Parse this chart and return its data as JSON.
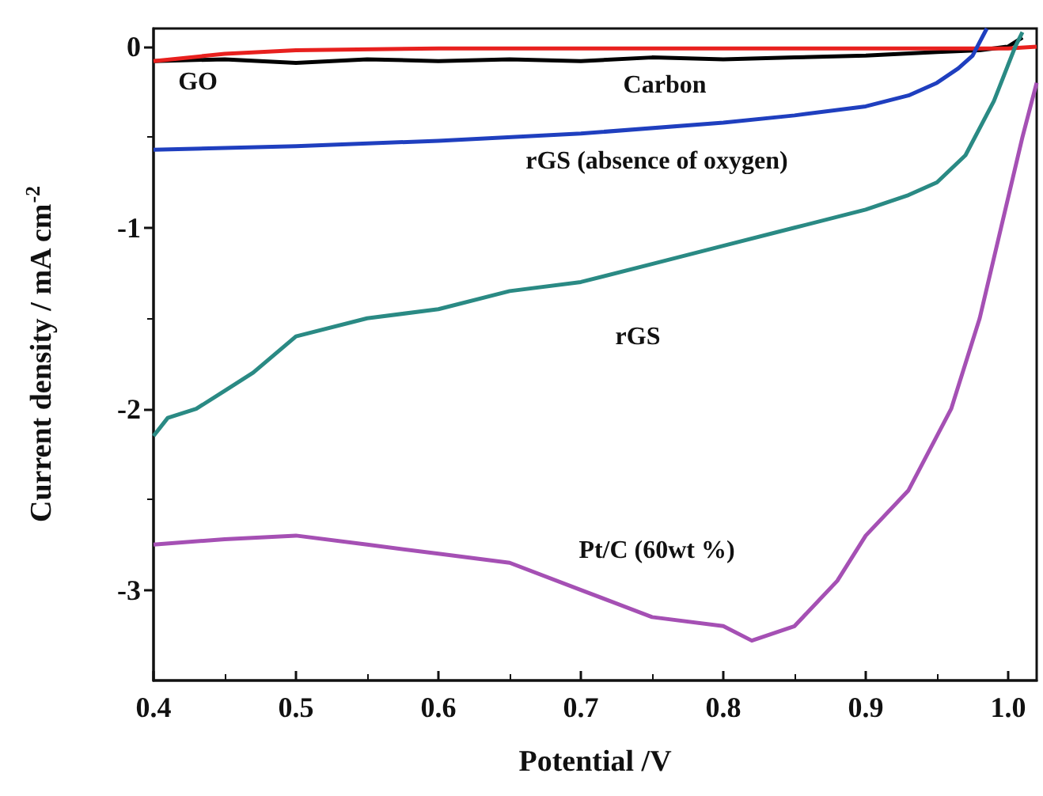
{
  "chart_data": {
    "type": "line",
    "xlabel": "Potential /V",
    "ylabel": "Current density / mA cm$^{-2}$",
    "xlim": [
      0.4,
      1.02
    ],
    "xticks": [
      0.4,
      0.5,
      0.6,
      0.7,
      0.8,
      0.9,
      {
        "value": 1.0,
        "label": "1.0"
      }
    ],
    "ylim": [
      -3.5,
      0.1
    ],
    "yticks": [
      -3,
      -2,
      -1,
      0
    ],
    "grid": false,
    "marker": "none",
    "line_style": "solid",
    "series": [
      {
        "color": "#000000",
        "x": [
          0.4,
          0.45,
          0.5,
          0.55,
          0.6,
          0.65,
          0.7,
          0.75,
          0.8,
          0.85,
          0.9,
          0.95,
          0.98,
          1.0,
          1.01
        ],
        "values": [
          -0.08,
          -0.07,
          -0.09,
          -0.07,
          -0.08,
          -0.07,
          -0.08,
          -0.06,
          -0.07,
          -0.06,
          -0.05,
          -0.03,
          -0.02,
          0,
          0.05
        ]
      },
      {
        "color": "#e8201e",
        "x": [
          0.4,
          0.45,
          0.5,
          0.6,
          0.7,
          0.8,
          0.9,
          1.0,
          1.02
        ],
        "values": [
          -0.08,
          -0.04,
          -0.02,
          -0.01,
          -0.01,
          -0.01,
          -0.01,
          -0.01,
          0
        ]
      },
      {
        "color": "#1f3fbf",
        "x": [
          0.4,
          0.5,
          0.6,
          0.7,
          0.8,
          0.85,
          0.9,
          0.93,
          0.95,
          0.965,
          0.975,
          0.985
        ],
        "values": [
          -0.57,
          -0.55,
          -0.52,
          -0.48,
          -0.42,
          -0.38,
          -0.33,
          -0.27,
          -0.2,
          -0.12,
          -0.05,
          0.1
        ]
      },
      {
        "color": "#2a8a84",
        "x": [
          0.4,
          0.41,
          0.43,
          0.45,
          0.47,
          0.5,
          0.55,
          0.6,
          0.65,
          0.7,
          0.75,
          0.8,
          0.85,
          0.9,
          0.93,
          0.95,
          0.97,
          0.99,
          1.005,
          1.01
        ],
        "values": [
          -2.15,
          -2.05,
          -2.0,
          -1.9,
          -1.8,
          -1.6,
          -1.5,
          -1.45,
          -1.35,
          -1.3,
          -1.2,
          -1.1,
          -1.0,
          -0.9,
          -0.82,
          -0.75,
          -0.6,
          -0.3,
          0,
          0.08
        ]
      },
      {
        "color": "#a550b4",
        "x": [
          0.4,
          0.45,
          0.5,
          0.55,
          0.6,
          0.65,
          0.7,
          0.75,
          0.8,
          0.82,
          0.85,
          0.88,
          0.9,
          0.93,
          0.96,
          0.98,
          0.995,
          1.01,
          1.02
        ],
        "values": [
          -2.75,
          -2.72,
          -2.7,
          -2.75,
          -2.8,
          -2.85,
          -3.0,
          -3.15,
          -3.2,
          -3.28,
          -3.2,
          -2.95,
          -2.7,
          -2.45,
          -2.0,
          -1.5,
          -1.0,
          -0.5,
          -0.2
        ]
      }
    ],
    "annotations": [
      "GO",
      "Carbon",
      "rGS (absence of oxygen)",
      "rGS",
      "Pt/C (60wt %)"
    ]
  }
}
